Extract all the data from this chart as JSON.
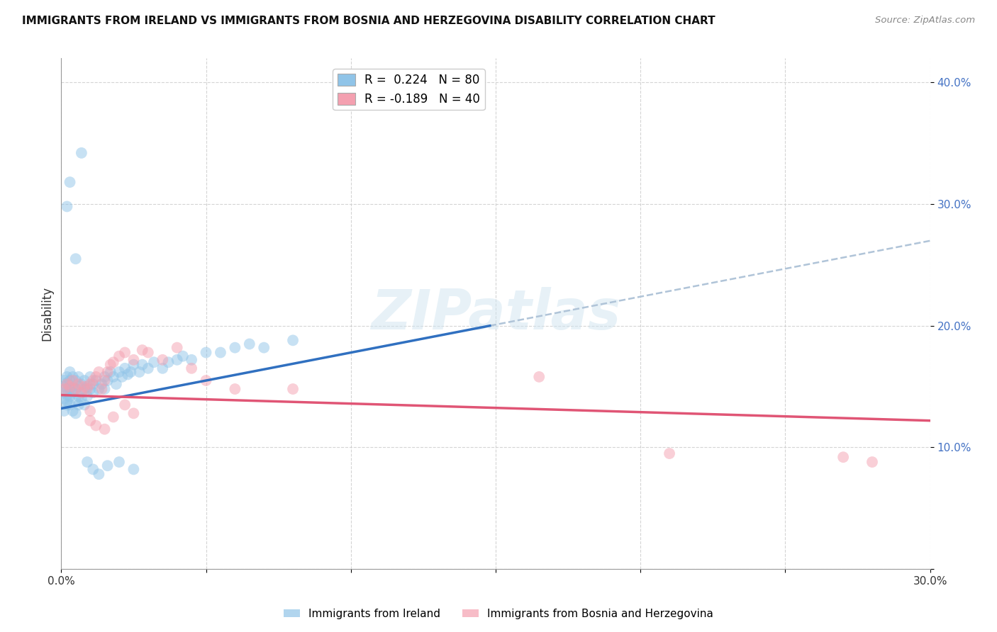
{
  "title": "IMMIGRANTS FROM IRELAND VS IMMIGRANTS FROM BOSNIA AND HERZEGOVINA DISABILITY CORRELATION CHART",
  "source": "Source: ZipAtlas.com",
  "ylabel": "Disability",
  "xlim": [
    0.0,
    0.3
  ],
  "ylim": [
    0.0,
    0.42
  ],
  "xticks": [
    0.0,
    0.05,
    0.1,
    0.15,
    0.2,
    0.25,
    0.3
  ],
  "xtick_labels": [
    "0.0%",
    "",
    "",
    "",
    "",
    "",
    "30.0%"
  ],
  "yticks": [
    0.0,
    0.1,
    0.2,
    0.3,
    0.4
  ],
  "ytick_labels": [
    "",
    "10.0%",
    "20.0%",
    "30.0%",
    "40.0%"
  ],
  "blue_R": 0.224,
  "blue_N": 80,
  "pink_R": -0.189,
  "pink_N": 40,
  "blue_color": "#90c4e8",
  "pink_color": "#f4a0b0",
  "blue_line_color": "#3070c0",
  "pink_line_color": "#e05575",
  "dashed_color": "#b0c4d8",
  "watermark": "ZIPatlas",
  "legend_label_blue": "Immigrants from Ireland",
  "legend_label_pink": "Immigrants from Bosnia and Herzegovina",
  "blue_line_x0": 0.0,
  "blue_line_y0": 0.132,
  "blue_line_x1": 0.148,
  "blue_line_y1": 0.2,
  "pink_line_x0": 0.0,
  "pink_line_y0": 0.143,
  "pink_line_x1": 0.3,
  "pink_line_y1": 0.122,
  "blue_x": [
    0.001,
    0.001,
    0.001,
    0.001,
    0.001,
    0.002,
    0.002,
    0.002,
    0.002,
    0.002,
    0.002,
    0.003,
    0.003,
    0.003,
    0.003,
    0.003,
    0.004,
    0.004,
    0.004,
    0.004,
    0.005,
    0.005,
    0.005,
    0.005,
    0.006,
    0.006,
    0.006,
    0.006,
    0.007,
    0.007,
    0.007,
    0.008,
    0.008,
    0.008,
    0.009,
    0.009,
    0.01,
    0.01,
    0.011,
    0.011,
    0.012,
    0.013,
    0.014,
    0.015,
    0.015,
    0.016,
    0.017,
    0.018,
    0.019,
    0.02,
    0.021,
    0.022,
    0.023,
    0.024,
    0.025,
    0.027,
    0.028,
    0.03,
    0.032,
    0.035,
    0.037,
    0.04,
    0.042,
    0.045,
    0.05,
    0.055,
    0.06,
    0.065,
    0.07,
    0.08,
    0.002,
    0.003,
    0.005,
    0.007,
    0.009,
    0.011,
    0.013,
    0.016,
    0.02,
    0.025
  ],
  "blue_y": [
    0.14,
    0.145,
    0.15,
    0.155,
    0.13,
    0.138,
    0.148,
    0.153,
    0.158,
    0.143,
    0.135,
    0.142,
    0.148,
    0.155,
    0.162,
    0.135,
    0.145,
    0.15,
    0.158,
    0.13,
    0.14,
    0.148,
    0.155,
    0.128,
    0.142,
    0.15,
    0.158,
    0.135,
    0.145,
    0.152,
    0.14,
    0.148,
    0.155,
    0.135,
    0.142,
    0.15,
    0.148,
    0.158,
    0.152,
    0.145,
    0.155,
    0.148,
    0.152,
    0.158,
    0.148,
    0.155,
    0.162,
    0.158,
    0.152,
    0.162,
    0.158,
    0.165,
    0.16,
    0.162,
    0.168,
    0.162,
    0.168,
    0.165,
    0.17,
    0.165,
    0.17,
    0.172,
    0.175,
    0.172,
    0.178,
    0.178,
    0.182,
    0.185,
    0.182,
    0.188,
    0.298,
    0.318,
    0.255,
    0.342,
    0.088,
    0.082,
    0.078,
    0.085,
    0.088,
    0.082
  ],
  "pink_x": [
    0.001,
    0.002,
    0.003,
    0.004,
    0.005,
    0.006,
    0.007,
    0.008,
    0.009,
    0.01,
    0.01,
    0.011,
    0.012,
    0.013,
    0.014,
    0.015,
    0.016,
    0.017,
    0.018,
    0.02,
    0.022,
    0.025,
    0.028,
    0.03,
    0.035,
    0.04,
    0.045,
    0.05,
    0.06,
    0.08,
    0.01,
    0.012,
    0.015,
    0.018,
    0.022,
    0.025,
    0.165,
    0.21,
    0.27,
    0.28
  ],
  "pink_y": [
    0.148,
    0.152,
    0.15,
    0.155,
    0.148,
    0.152,
    0.145,
    0.15,
    0.148,
    0.152,
    0.13,
    0.155,
    0.158,
    0.162,
    0.148,
    0.155,
    0.162,
    0.168,
    0.17,
    0.175,
    0.178,
    0.172,
    0.18,
    0.178,
    0.172,
    0.182,
    0.165,
    0.155,
    0.148,
    0.148,
    0.122,
    0.118,
    0.115,
    0.125,
    0.135,
    0.128,
    0.158,
    0.095,
    0.092,
    0.088
  ]
}
